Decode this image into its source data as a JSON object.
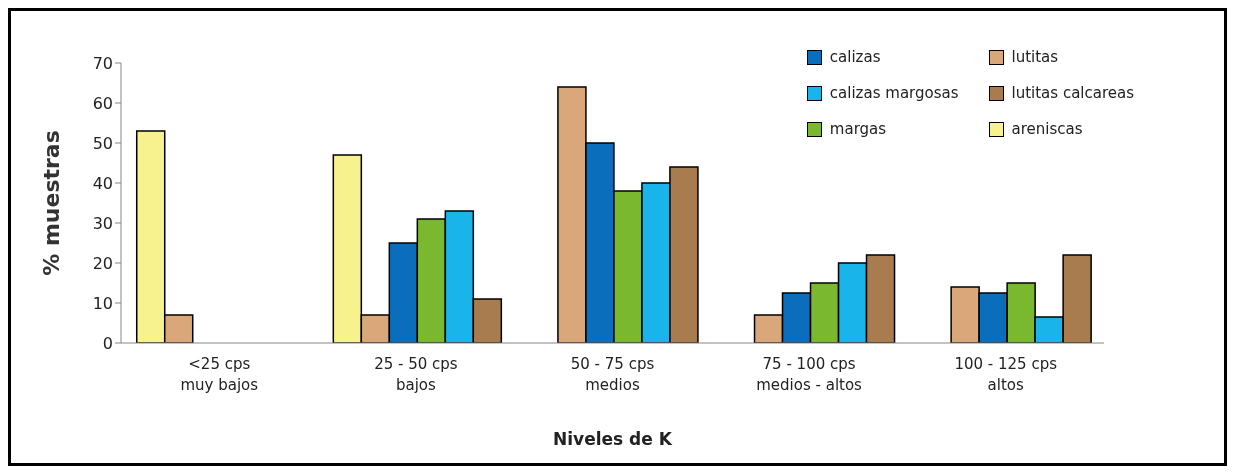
{
  "chart_data": {
    "type": "bar",
    "xlabel": "Niveles de K",
    "ylabel": "% muestras",
    "categories": [
      "<25 cps\nmuy bajos",
      "25 - 50 cps\nbajos",
      "50 - 75 cps\nmedios",
      "75 - 100 cps\nmedios - altos",
      "100 - 125 cps\naltos"
    ],
    "series": [
      {
        "name": "areniscas",
        "color": "#f7f28e",
        "values": [
          53,
          47,
          null,
          null,
          null
        ]
      },
      {
        "name": "lutitas",
        "color": "#d9a77a",
        "values": [
          7,
          7,
          64,
          7,
          14
        ]
      },
      {
        "name": "calizas",
        "color": "#0a6ebd",
        "values": [
          null,
          25,
          50,
          12.5,
          12.5
        ]
      },
      {
        "name": "margas",
        "color": "#7ab82f",
        "values": [
          null,
          31,
          38,
          15,
          15
        ]
      },
      {
        "name": "calizas margosas",
        "color": "#19b5ea",
        "values": [
          null,
          33,
          40,
          20,
          6.5
        ]
      },
      {
        "name": "lutitas calcareas",
        "color": "#a97c50",
        "values": [
          null,
          11,
          44,
          22,
          22
        ]
      }
    ],
    "ylim": [
      0,
      70
    ],
    "yticks": [
      0,
      10,
      20,
      30,
      40,
      50,
      60,
      70
    ],
    "grid": false,
    "legend": "top right"
  }
}
